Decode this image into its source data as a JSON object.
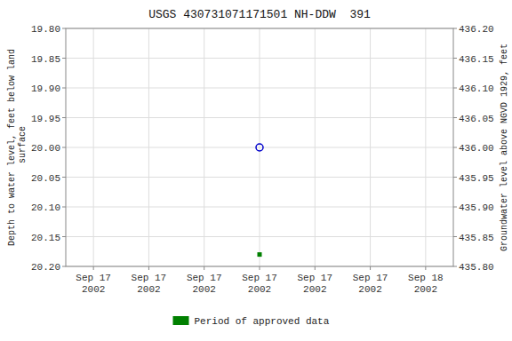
{
  "chart_data": {
    "type": "scatter",
    "title": "USGS 430731071171501 NH-DDW  391",
    "y_label": "Depth to water level, feet below land\n surface",
    "y2_label": "Groundwater level above NGVD 1929, feet",
    "categories": [
      "Sep 17\n2002",
      "Sep 17\n2002",
      "Sep 17\n2002",
      "Sep 17\n2002",
      "Sep 17\n2002",
      "Sep 17\n2002",
      "Sep 18\n2002"
    ],
    "series": [
      {
        "color": "#0000cc",
        "marker": "open-circle",
        "values": [
          null,
          null,
          null,
          20.0,
          null,
          null,
          null
        ]
      },
      {
        "name": "Period of approved data",
        "color": "#008000",
        "marker": "square",
        "values": [
          null,
          null,
          null,
          20.18,
          null,
          null,
          null
        ]
      }
    ],
    "ylim": [
      20.2,
      19.8
    ],
    "yticks": [
      {
        "value": 19.8,
        "label": "19.80"
      },
      {
        "value": 19.85,
        "label": "19.85"
      },
      {
        "value": 19.9,
        "label": "19.90"
      },
      {
        "value": 19.95,
        "label": "19.95"
      },
      {
        "value": 20.0,
        "label": "20.00"
      },
      {
        "value": 20.05,
        "label": "20.05"
      },
      {
        "value": 20.1,
        "label": "20.10"
      },
      {
        "value": 20.15,
        "label": "20.15"
      },
      {
        "value": 20.2,
        "label": "20.20"
      }
    ],
    "y2lim": [
      435.8,
      436.2
    ],
    "y2ticks": [
      {
        "value": 436.2,
        "label": "436.20"
      },
      {
        "value": 436.15,
        "label": "436.15"
      },
      {
        "value": 436.1,
        "label": "436.10"
      },
      {
        "value": 436.05,
        "label": "436.05"
      },
      {
        "value": 436.0,
        "label": "436.00"
      },
      {
        "value": 435.95,
        "label": "435.95"
      },
      {
        "value": 435.9,
        "label": "435.90"
      },
      {
        "value": 435.85,
        "label": "435.85"
      },
      {
        "value": 435.8,
        "label": "435.80"
      }
    ],
    "grid": true,
    "legend": "bottom"
  }
}
